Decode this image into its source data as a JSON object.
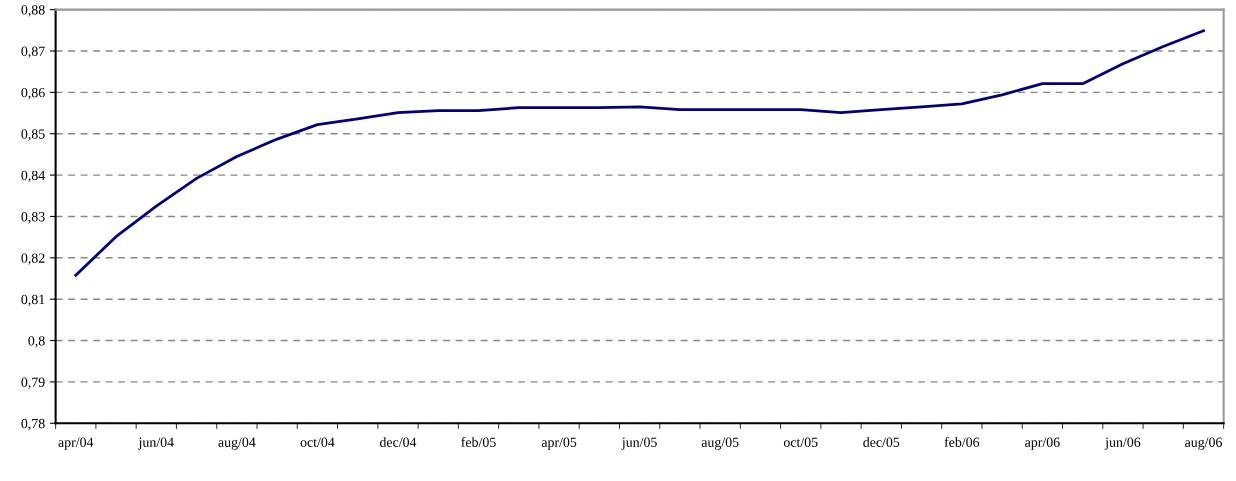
{
  "chart_data": {
    "type": "line",
    "categories": [
      "apr/04",
      null,
      "jun/04",
      null,
      "aug/04",
      null,
      "oct/04",
      null,
      "dec/04",
      null,
      "feb/05",
      null,
      "apr/05",
      null,
      "jun/05",
      null,
      "aug/05",
      null,
      "oct/05",
      null,
      "dec/05",
      null,
      "feb/06",
      null,
      "apr/06",
      null,
      "jun/06",
      null,
      "aug/06"
    ],
    "series": [
      {
        "color": "#000080",
        "values": [
          0.8158,
          0.8251,
          0.8325,
          0.8392,
          0.8445,
          0.8487,
          0.8522,
          0.8536,
          0.8551,
          0.8556,
          0.8556,
          0.8563,
          0.8563,
          0.8563,
          0.8565,
          0.8558,
          0.8558,
          0.8558,
          0.8558,
          0.8551,
          0.8558,
          0.8565,
          0.8572,
          0.8594,
          0.8621,
          0.8621,
          0.8669,
          0.8711,
          0.8749
        ]
      }
    ],
    "ylim": [
      0.78,
      0.88
    ],
    "yticks": [
      {
        "value": 0.78,
        "label": "0,78"
      },
      {
        "value": 0.79,
        "label": "0,79"
      },
      {
        "value": 0.8,
        "label": "0,8"
      },
      {
        "value": 0.81,
        "label": "0,81"
      },
      {
        "value": 0.82,
        "label": "0,82"
      },
      {
        "value": 0.83,
        "label": "0,83"
      },
      {
        "value": 0.84,
        "label": "0,84"
      },
      {
        "value": 0.85,
        "label": "0,85"
      },
      {
        "value": 0.86,
        "label": "0,86"
      },
      {
        "value": 0.87,
        "label": "0,87"
      },
      {
        "value": 0.88,
        "label": "0,88"
      }
    ],
    "grid": "y",
    "marker": "none",
    "line_style": "solid"
  }
}
